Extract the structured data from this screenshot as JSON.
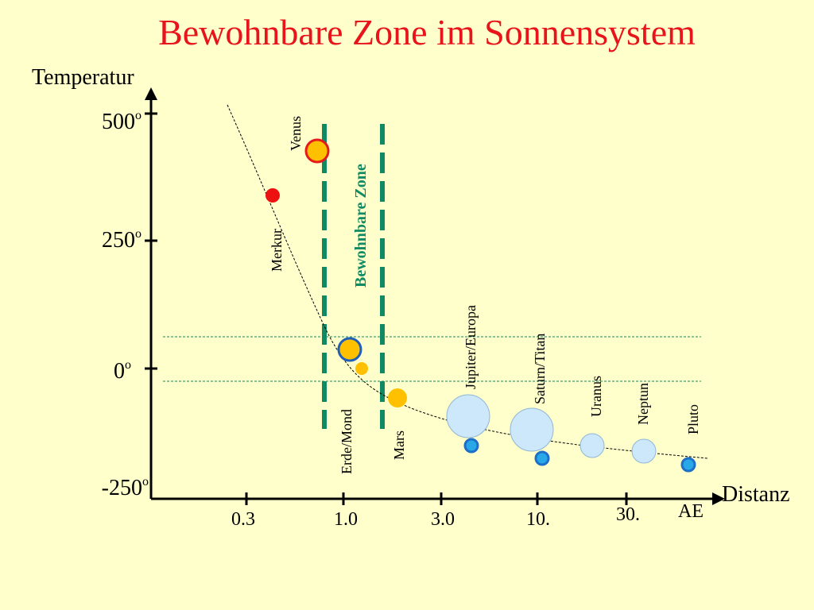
{
  "title": "Bewohnbare Zone im Sonnensystem",
  "y_axis": {
    "label": "Temperatur",
    "ticks": [
      {
        "text": "500",
        "sup": "o",
        "value": 500
      },
      {
        "text": "250",
        "sup": "o",
        "value": 250
      },
      {
        "text": "0",
        "sup": "o",
        "value": 0
      },
      {
        "text": "-250",
        "sup": "o",
        "value": -250
      }
    ]
  },
  "x_axis": {
    "label": "Distanz",
    "unit": "AE",
    "ticks": [
      "0.3",
      "1.0",
      "3.0",
      "10.",
      "30."
    ]
  },
  "zone_label": "Bewohnbare Zone",
  "bodies": [
    {
      "name": "Venus"
    },
    {
      "name": "Merkur"
    },
    {
      "name": "Erde/Mond"
    },
    {
      "name": "Mars"
    },
    {
      "name": "Jupiter/Europa"
    },
    {
      "name": "Saturn/Titan"
    },
    {
      "name": "Uranus"
    },
    {
      "name": "Neptun"
    },
    {
      "name": "Pluto"
    }
  ],
  "colors": {
    "background": "#ffffcc",
    "title": "#e8141c",
    "zone": "#0f8a63",
    "hot": "#ee1111",
    "warm": "#ffc000",
    "cold_fill": "#cde7fb",
    "icy": "#1e7fd6",
    "ring_blue": "#1f5fb8"
  }
}
